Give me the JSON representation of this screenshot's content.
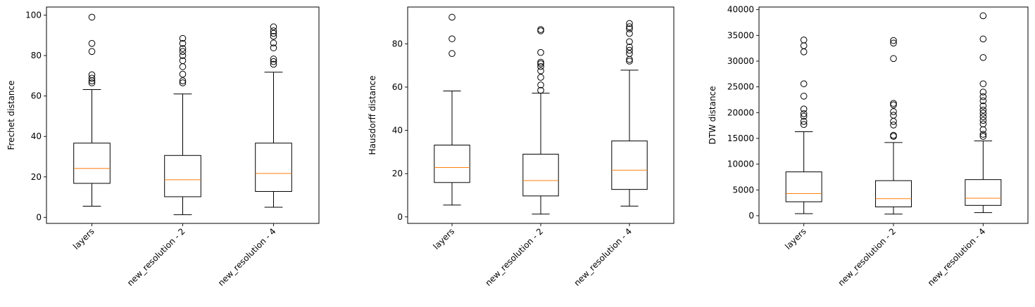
{
  "chart_data": [
    {
      "type": "box",
      "ylabel": "Frechet distance",
      "categories": [
        "layers",
        "new_resolution - 2",
        "new_resolution - 4"
      ],
      "ylim": [
        -3,
        104
      ],
      "yticks": [
        0,
        20,
        40,
        60,
        80,
        100
      ],
      "boxes": [
        {
          "whisker_low": 5.5,
          "q1": 16.8,
          "median": 24.2,
          "q3": 36.7,
          "whisker_high": 63.2,
          "outliers": [
            66.5,
            67.5,
            68.8,
            70.5,
            82,
            86,
            99
          ]
        },
        {
          "whisker_low": 1.3,
          "q1": 10.2,
          "median": 18.6,
          "q3": 30.6,
          "whisker_high": 61.0,
          "outliers": [
            66.5,
            67.5,
            70.8,
            74.5,
            77.5,
            80,
            82,
            83.5,
            86,
            88.5
          ]
        },
        {
          "whisker_low": 5.0,
          "q1": 12.8,
          "median": 21.7,
          "q3": 36.7,
          "whisker_high": 71.8,
          "outliers": [
            75.7,
            77,
            78.3,
            83.8,
            86.2,
            89.5,
            91,
            92.2,
            94.2
          ]
        }
      ]
    },
    {
      "type": "box",
      "ylabel": "Hausdorff distance",
      "categories": [
        "layers",
        "new_resolution - 2",
        "new_resolution - 4"
      ],
      "ylim": [
        -3,
        97
      ],
      "yticks": [
        0,
        20,
        40,
        60,
        80
      ],
      "boxes": [
        {
          "whisker_low": 5.5,
          "q1": 15.9,
          "median": 22.8,
          "q3": 33.2,
          "whisker_high": 58.2,
          "outliers": [
            75.5,
            82.3,
            92.3
          ]
        },
        {
          "whisker_low": 1.3,
          "q1": 9.7,
          "median": 16.8,
          "q3": 29.0,
          "whisker_high": 57.2,
          "outliers": [
            58.5,
            61,
            64.5,
            67.5,
            69.5,
            70.8,
            71.5,
            76,
            86,
            86.6
          ]
        },
        {
          "whisker_low": 5.0,
          "q1": 12.7,
          "median": 21.6,
          "q3": 35.1,
          "whisker_high": 67.8,
          "outliers": [
            72,
            72.8,
            75.5,
            77,
            78.5,
            81,
            84.8,
            86.9,
            87.9,
            89.4
          ]
        }
      ]
    },
    {
      "type": "box",
      "ylabel": "DTW distance",
      "categories": [
        "layers",
        "new_resolution - 2",
        "new_resolution - 4"
      ],
      "ylim": [
        -1500,
        40500
      ],
      "yticks": [
        0,
        5000,
        10000,
        15000,
        20000,
        25000,
        30000,
        35000,
        40000
      ],
      "boxes": [
        {
          "whisker_low": 400,
          "q1": 2700,
          "median": 4300,
          "q3": 8500,
          "whisker_high": 16300,
          "outliers": [
            17700,
            18300,
            19300,
            19800,
            20700,
            23200,
            25600,
            31800,
            33000,
            34100
          ]
        },
        {
          "whisker_low": 300,
          "q1": 1700,
          "median": 3300,
          "q3": 6800,
          "whisker_high": 14200,
          "outliers": [
            15400,
            15600,
            17600,
            18300,
            19500,
            20200,
            21500,
            21800,
            30500,
            33500,
            34000
          ]
        },
        {
          "whisker_low": 600,
          "q1": 2000,
          "median": 3400,
          "q3": 7000,
          "whisker_high": 14500,
          "outliers": [
            15400,
            15800,
            16700,
            17800,
            18500,
            19200,
            19900,
            20500,
            21300,
            22300,
            23100,
            24000,
            25600,
            30700,
            34300,
            38800
          ]
        }
      ]
    }
  ]
}
